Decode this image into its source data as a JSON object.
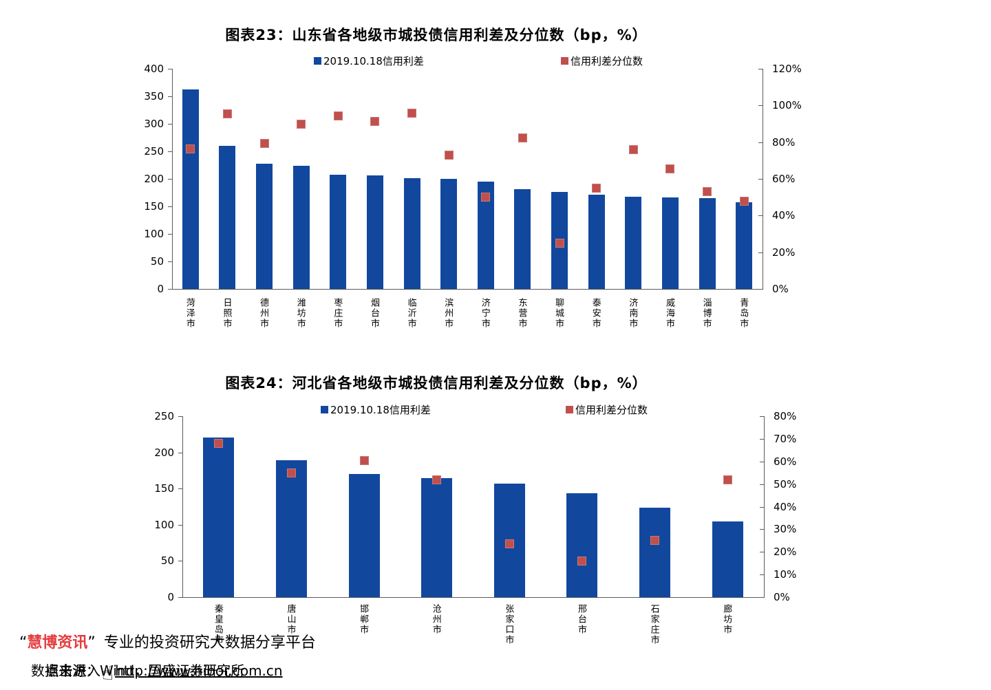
{
  "page": {
    "background": "#ffffff"
  },
  "colors": {
    "bar_blue": "#11489e",
    "marker_red": "#c0504d",
    "axis_gray": "#595959",
    "brand_red": "#e63c3f",
    "text_black": "#000000"
  },
  "chart_data": [
    {
      "type": "bar",
      "title": "图表23：山东省各地级市城投债信用利差及分位数（bp，%）",
      "categories": [
        "菏泽市",
        "日照市",
        "德州市",
        "潍坊市",
        "枣庄市",
        "烟台市",
        "临沂市",
        "滨州市",
        "济宁市",
        "东营市",
        "聊城市",
        "泰安市",
        "济南市",
        "威海市",
        "淄博市",
        "青岛市"
      ],
      "series": [
        {
          "name": "2019.10.18信用利差",
          "type": "bar",
          "axis": "left",
          "unit": "bp",
          "color": "#11489e",
          "values": [
            362,
            260,
            227,
            224,
            207,
            206,
            201,
            200,
            195,
            181,
            176,
            171,
            167,
            166,
            165,
            158
          ]
        },
        {
          "name": "信用利差分位数",
          "type": "scatter",
          "axis": "right",
          "unit": "%",
          "color": "#c0504d",
          "values": [
            76.5,
            95.5,
            79.5,
            90,
            94.5,
            91.5,
            96,
            73,
            50,
            82.5,
            25,
            55,
            76,
            65.5,
            53,
            48
          ]
        }
      ],
      "left_axis": {
        "min": 0,
        "max": 400,
        "ticks": [
          400,
          350,
          300,
          250,
          200,
          150,
          100,
          50,
          0
        ]
      },
      "right_axis": {
        "min": 0,
        "max": 120,
        "ticks": [
          "120%",
          "100%",
          "80%",
          "60%",
          "40%",
          "20%",
          "0%"
        ]
      },
      "legend_position": "top",
      "grid": false
    },
    {
      "type": "bar",
      "title": "图表24：河北省各地级市城投债信用利差及分位数（bp，%）",
      "categories": [
        "秦皇岛市",
        "唐山市",
        "邯郸市",
        "沧州市",
        "张家口市",
        "邢台市",
        "石家庄市",
        "廊坊市"
      ],
      "series": [
        {
          "name": "2019.10.18信用利差",
          "type": "bar",
          "axis": "left",
          "unit": "bp",
          "color": "#11489e",
          "values": [
            221,
            189,
            170,
            164,
            157,
            144,
            124,
            105
          ]
        },
        {
          "name": "信用利差分位数",
          "type": "scatter",
          "axis": "right",
          "unit": "%",
          "color": "#c0504d",
          "values": [
            68,
            55,
            60.5,
            52,
            23.5,
            16,
            25,
            52
          ]
        }
      ],
      "left_axis": {
        "min": 0,
        "max": 250,
        "ticks": [
          250,
          200,
          150,
          100,
          50,
          0
        ]
      },
      "right_axis": {
        "min": 0,
        "max": 80,
        "ticks": [
          "80%",
          "70%",
          "60%",
          "50%",
          "40%",
          "30%",
          "20%",
          "10%",
          "0%"
        ]
      },
      "legend_position": "top",
      "grid": false
    }
  ],
  "footer": {
    "quote_open": "“",
    "brand": "慧博资讯",
    "quote_close": "”",
    "tagline": "专业的投资研究大数据分享平台",
    "source": "数据来源：Wind，国盛证券研究所",
    "cta": "点击进入",
    "url": "http://www.hibor.com.cn",
    "hand_icon": "☝"
  }
}
